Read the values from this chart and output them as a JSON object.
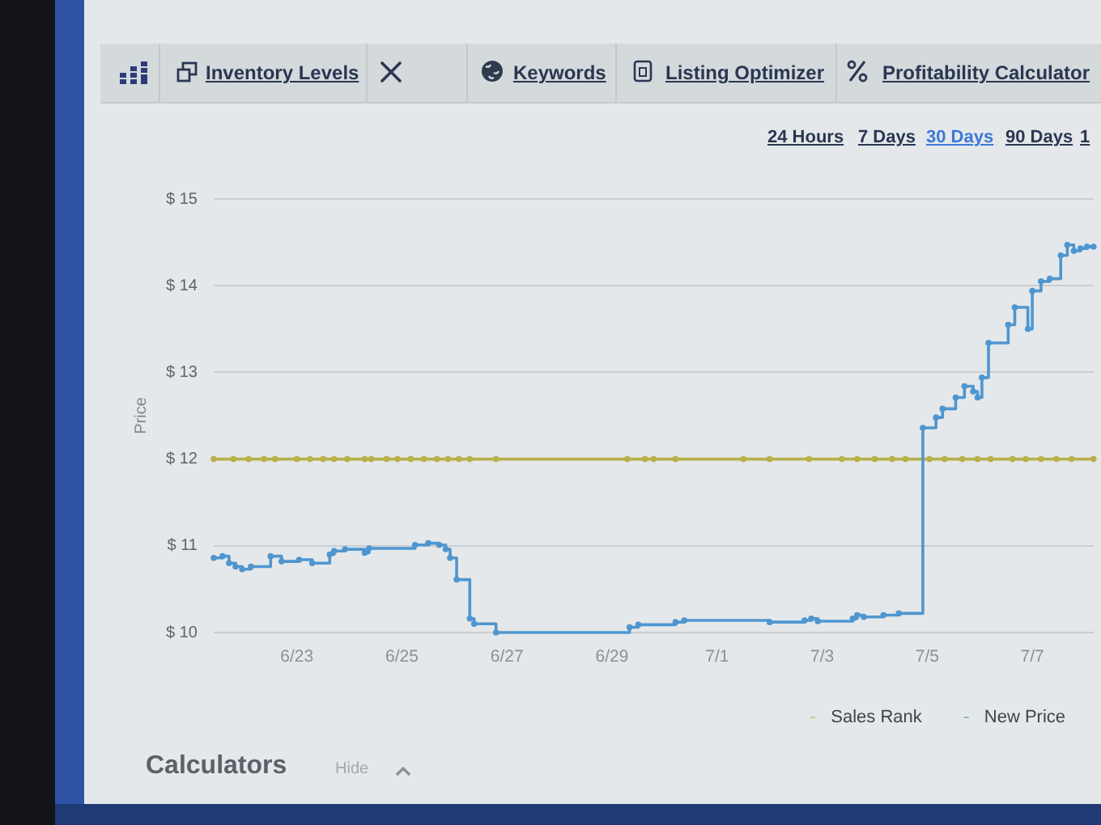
{
  "chart_data": {
    "type": "step",
    "ylabel": "Price",
    "series": [
      {
        "name": "Sales Rank",
        "color": "#bab04c",
        "x": [
          "--06-21T10:00",
          "--06-21T19:00",
          "--06-22T02:00",
          "--06-22T09:00",
          "--06-22T14:00",
          "--06-23T00:00",
          "--06-23T06:00",
          "--06-23T12:00",
          "--06-23T17:00",
          "--06-23T23:00",
          "--06-24T07:00",
          "--06-24T10:00",
          "--06-24T17:00",
          "--06-24T22:00",
          "--06-25T04:00",
          "--06-25T10:00",
          "--06-25T16:00",
          "--06-25T21:00",
          "--06-26T02:00",
          "--06-26T07:00",
          "--06-26T19:00",
          "--06-29T07:00",
          "--06-29T15:00",
          "--06-29T19:00",
          "--06-30T05:00",
          "--07-01T12:00",
          "--07-02T00:00",
          "--07-02T18:00",
          "--07-03T09:00",
          "--07-03T16:00",
          "--07-04T00:00",
          "--07-04T08:00",
          "--07-04T14:00",
          "--07-05T01:00",
          "--07-05T08:00",
          "--07-05T16:00",
          "--07-05T23:00",
          "--07-06T05:00",
          "--07-06T15:00",
          "--07-06T21:00",
          "--07-07T04:00",
          "--07-07T11:00",
          "--07-07T18:00",
          "--07-08T04:00"
        ],
        "values": [
          12,
          12,
          12,
          12,
          12,
          12,
          12,
          12,
          12,
          12,
          12,
          12,
          12,
          12,
          12,
          12,
          12,
          12,
          12,
          12,
          12,
          12,
          12,
          12,
          12,
          12,
          12,
          12,
          12,
          12,
          12,
          12,
          12,
          12,
          12,
          12,
          12,
          12,
          12,
          12,
          12,
          12,
          12,
          12
        ]
      },
      {
        "name": "New Price",
        "color": "#4f96d0",
        "x": [
          "--06-21T10:00",
          "--06-21T14:00",
          "--06-21T17:00",
          "--06-21T20:00",
          "--06-21T23:00",
          "--06-22T03:00",
          "--06-22T12:00",
          "--06-22T17:00",
          "--06-23T01:00",
          "--06-23T07:00",
          "--06-23T15:00",
          "--06-23T17:00",
          "--06-23T22:00",
          "--06-24T07:00",
          "--06-24T09:00",
          "--06-25T06:00",
          "--06-25T12:00",
          "--06-25T17:00",
          "--06-25T20:00",
          "--06-25T22:00",
          "--06-26T01:00",
          "--06-26T07:00",
          "--06-26T09:00",
          "--06-26T19:00",
          "--06-29T08:00",
          "--06-29T12:00",
          "--06-30T05:00",
          "--06-30T09:00",
          "--07-02T00:00",
          "--07-02T16:00",
          "--07-02T19:00",
          "--07-02T22:00",
          "--07-03T14:00",
          "--07-03T16:00",
          "--07-03T19:00",
          "--07-04T04:00",
          "--07-04T11:00",
          "--07-04T22:00",
          "--07-05T04:00",
          "--07-05T07:00",
          "--07-05T13:00",
          "--07-05T17:00",
          "--07-05T21:00",
          "--07-05T23:00",
          "--07-06T01:00",
          "--07-06T04:00",
          "--07-06T13:00",
          "--07-06T16:00",
          "--07-06T22:00",
          "--07-07T00:00",
          "--07-07T04:00",
          "--07-07T08:00",
          "--07-07T13:00",
          "--07-07T16:00",
          "--07-07T19:00",
          "--07-07T22:00",
          "--07-08T01:00",
          "--07-08T04:00"
        ],
        "values": [
          10.86,
          10.88,
          10.8,
          10.76,
          10.73,
          10.76,
          10.88,
          10.82,
          10.84,
          10.8,
          10.9,
          10.94,
          10.96,
          10.92,
          10.97,
          11.01,
          11.03,
          11.01,
          10.96,
          10.86,
          10.61,
          10.16,
          10.1,
          10.0,
          10.06,
          10.09,
          10.12,
          10.14,
          10.12,
          10.14,
          10.16,
          10.13,
          10.16,
          10.2,
          10.18,
          10.2,
          10.22,
          12.36,
          12.48,
          12.58,
          12.71,
          12.84,
          12.78,
          12.71,
          12.94,
          13.34,
          13.55,
          13.75,
          13.5,
          13.94,
          14.05,
          14.08,
          14.35,
          14.47,
          14.4,
          14.43,
          14.45,
          14.45
        ]
      }
    ],
    "xlim": [
      "--06-21T10:00",
      "--07-08T04:00"
    ],
    "xticks": [
      {
        "value": "--06-23",
        "label": "6/23"
      },
      {
        "value": "--06-25",
        "label": "6/25"
      },
      {
        "value": "--06-27",
        "label": "6/27"
      },
      {
        "value": "--06-29",
        "label": "6/29"
      },
      {
        "value": "--07-01",
        "label": "7/1"
      },
      {
        "value": "--07-03",
        "label": "7/3"
      },
      {
        "value": "--07-05",
        "label": "7/5"
      },
      {
        "value": "--07-07",
        "label": "7/7"
      }
    ],
    "ylim": [
      10,
      15
    ],
    "yticks": [
      {
        "value": 10,
        "label": "$ 10"
      },
      {
        "value": 11,
        "label": "$ 11"
      },
      {
        "value": 12,
        "label": "$ 12"
      },
      {
        "value": 13,
        "label": "$ 13"
      },
      {
        "value": 14,
        "label": "$ 14"
      },
      {
        "value": 15,
        "label": "$ 15"
      }
    ],
    "grid": "y",
    "legend": "bottom right",
    "marker": "circle",
    "annotations": [
      "Inventory Levels",
      "Keywords",
      "Listing Optimizer",
      "Profitability Calculator",
      "24 Hours",
      "7 Days",
      "30 Days",
      "90 Days",
      "1",
      "Calculators",
      "Hide"
    ]
  }
}
